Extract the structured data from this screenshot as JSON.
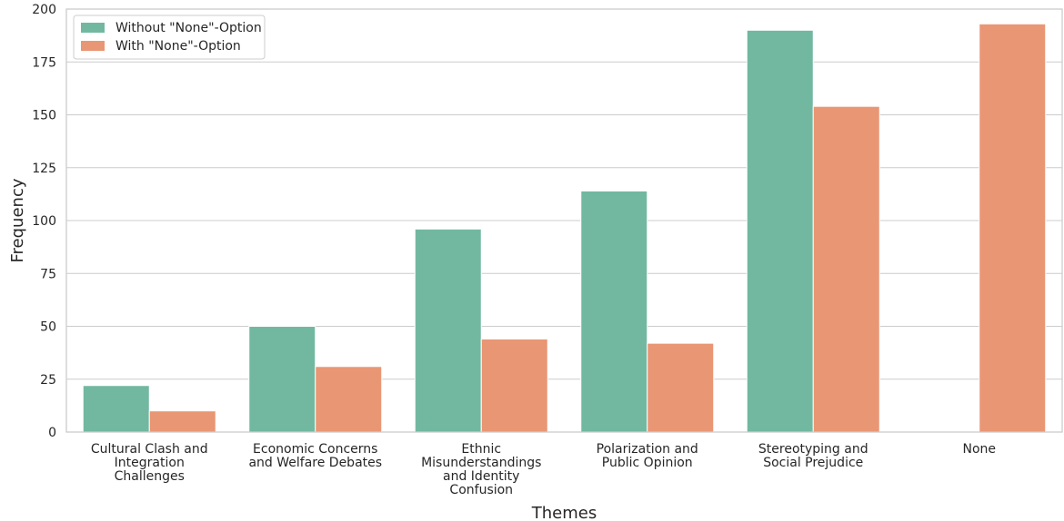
{
  "chart_data": {
    "type": "bar",
    "xlabel": "Themes",
    "ylabel": "Frequency",
    "ylim": [
      0,
      200
    ],
    "yticks": [
      0,
      25,
      50,
      75,
      100,
      125,
      150,
      175,
      200
    ],
    "grid": "horizontal",
    "legend_position": "top-left",
    "categories": [
      "Cultural Clash and Integration Challenges",
      "Economic Concerns and Welfare Debates",
      "Ethnic Misunderstandings and Identity Confusion",
      "Polarization and Public Opinion",
      "Stereotyping and Social Prejudice",
      "None"
    ],
    "category_label_lines": [
      [
        "Cultural Clash and",
        "Integration",
        "Challenges"
      ],
      [
        "Economic Concerns",
        "and Welfare Debates"
      ],
      [
        "Ethnic",
        "Misunderstandings",
        "and Identity",
        "Confusion"
      ],
      [
        "Polarization and",
        "Public Opinion"
      ],
      [
        "Stereotyping and",
        "Social Prejudice"
      ],
      [
        "None"
      ]
    ],
    "series": [
      {
        "name": "Without \"None\"-Option",
        "color": "#72b8a1",
        "values": [
          22,
          50,
          96,
          114,
          190,
          0
        ]
      },
      {
        "name": "With \"None\"-Option",
        "color": "#e99675",
        "values": [
          10,
          31,
          44,
          42,
          154,
          193
        ]
      }
    ]
  }
}
